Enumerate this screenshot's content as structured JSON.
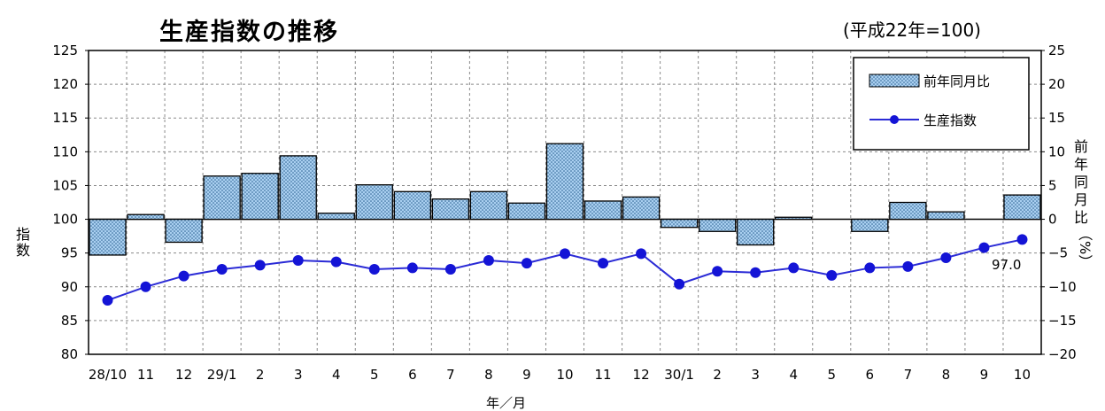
{
  "title": "生産指数の推移",
  "subtitle": "(平成22年=100)",
  "chart_data": {
    "type": "bar+line",
    "categories": [
      "28/10",
      "11",
      "12",
      "29/1",
      "2",
      "3",
      "4",
      "5",
      "6",
      "7",
      "8",
      "9",
      "10",
      "11",
      "12",
      "30/1",
      "2",
      "3",
      "4",
      "5",
      "6",
      "7",
      "8",
      "9",
      "10"
    ],
    "series": [
      {
        "name": "前年同月比",
        "type": "bar",
        "axis": "right",
        "values": [
          -5.3,
          0.7,
          -3.4,
          6.4,
          6.8,
          9.4,
          0.9,
          5.1,
          4.1,
          3.0,
          4.1,
          2.4,
          11.2,
          2.7,
          3.3,
          -1.2,
          -1.8,
          -3.8,
          0.3,
          0.0,
          -1.8,
          2.5,
          1.1,
          0.0,
          3.6
        ]
      },
      {
        "name": "生産指数",
        "type": "line",
        "axis": "left",
        "values": [
          88.0,
          90.0,
          91.6,
          92.6,
          93.2,
          93.9,
          93.7,
          92.6,
          92.8,
          92.6,
          93.9,
          93.5,
          94.9,
          93.5,
          94.9,
          90.4,
          92.3,
          92.1,
          92.8,
          91.7,
          92.8,
          93.0,
          94.3,
          95.8,
          97.0
        ]
      }
    ],
    "left_axis": {
      "label": "指数",
      "min": 80,
      "max": 125,
      "ticks": [
        80,
        85,
        90,
        95,
        100,
        105,
        110,
        115,
        120,
        125
      ],
      "tick_labels": [
        "80",
        "85",
        "90",
        "95",
        "100",
        "105",
        "110",
        "115",
        "120",
        "125"
      ]
    },
    "right_axis": {
      "label": "前年同月比（%）",
      "min": -20,
      "max": 25,
      "ticks": [
        -20,
        -15,
        -10,
        -5,
        0,
        5,
        10,
        15,
        20,
        25
      ],
      "tick_labels": [
        "−20",
        "−15",
        "−10",
        "−5",
        "0",
        "5",
        "10",
        "15",
        "20",
        "25"
      ]
    },
    "xlabel": "年／月",
    "annotation": "97.0",
    "legend": {
      "placement": "top-right",
      "items": [
        "前年同月比",
        "生産指数"
      ]
    },
    "grid": true,
    "colors": {
      "bar_fill": "#a9cff0",
      "bar_dots": "#2a5f8f",
      "line": "#2b2bd6",
      "marker": "#1414d6",
      "grid": "#8a8a8a"
    }
  }
}
